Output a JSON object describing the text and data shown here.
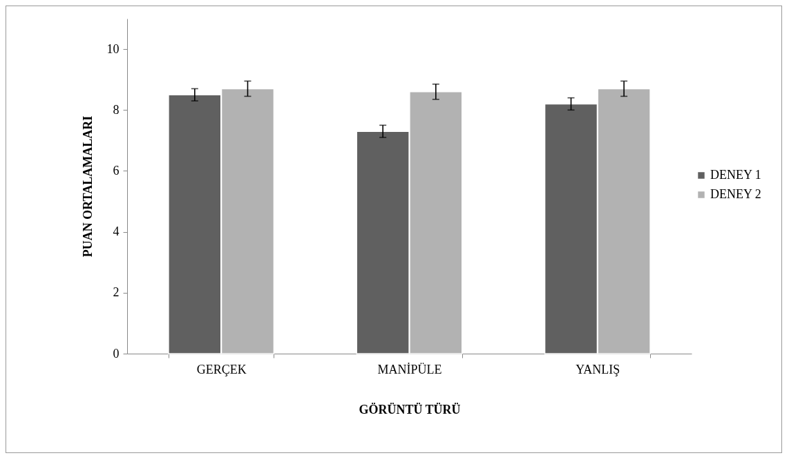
{
  "chart_data": {
    "type": "bar",
    "xlabel": "GÖRÜNTÜ TÜRÜ",
    "ylabel": "PUAN ORTALAMALARI",
    "categories": [
      "GERÇEK",
      "MANİPÜLE",
      "YANLIŞ"
    ],
    "series": [
      {
        "name": "DENEY 1",
        "color": "#606060",
        "values": [
          8.5,
          7.3,
          8.2
        ],
        "errors": [
          0.2,
          0.2,
          0.2
        ]
      },
      {
        "name": "DENEY 2",
        "color": "#b2b2b2",
        "values": [
          8.7,
          8.6,
          8.7
        ],
        "errors": [
          0.25,
          0.25,
          0.25
        ]
      }
    ],
    "ylim": [
      0,
      11
    ],
    "yticks": [
      0,
      2,
      4,
      6,
      8,
      10
    ],
    "grid": false,
    "legend": "right"
  }
}
